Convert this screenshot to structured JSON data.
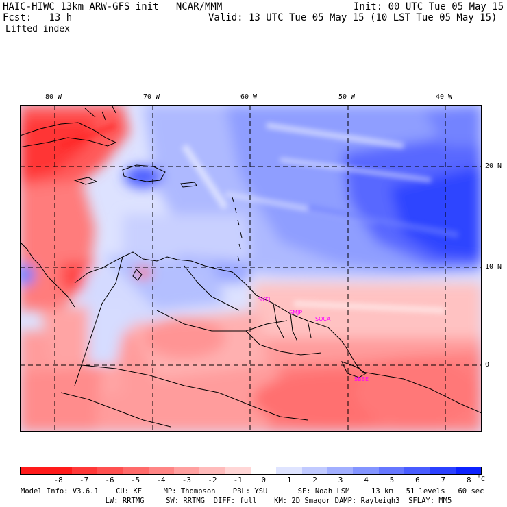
{
  "header": {
    "title": "HAIC-HIWC 13km ARW-GFS init   NCAR/MMM",
    "init": "Init: 00 UTC Tue 05 May 15",
    "fcst": "Fcst:   13 h",
    "valid": "Valid: 13 UTC Tue 05 May 15 (10 LST Tue 05 May 15)",
    "field": "Lifted index"
  },
  "axes": {
    "lon_labels": [
      "80 W",
      "70 W",
      "60 W",
      "50 W",
      "40 W"
    ],
    "lat_labels": [
      "20 N",
      "10 N",
      "0"
    ]
  },
  "stations": [
    "SYEJ",
    "SMJP",
    "SOCA",
    "SBBE"
  ],
  "colorbar": {
    "ticks": [
      "-8",
      "-7",
      "-6",
      "-5",
      "-4",
      "-3",
      "-2",
      "-1",
      "0",
      "1",
      "2",
      "3",
      "4",
      "5",
      "6",
      "7",
      "8"
    ],
    "unit": "°C",
    "colors": [
      "#ff1a1a",
      "#ff3838",
      "#ff5050",
      "#ff6a6a",
      "#ff8585",
      "#ffa0a0",
      "#ffbbbb",
      "#ffd6d6",
      "#ffffff",
      "#dfe4ff",
      "#c1caff",
      "#a2afff",
      "#8394ff",
      "#6677ff",
      "#495cff",
      "#2b40ff",
      "#0d22ff"
    ]
  },
  "footer": {
    "line1": "Model Info: V3.6.1    CU: KF     MP: Thompson    PBL: YSU       SF: Noah LSM     13 km   51 levels   60 sec",
    "line2": "     LW: RRTMG     SW: RRTMG  DIFF: full    KM: 2D Smagor DAMP: Rayleigh3  SFLAY: MM5"
  }
}
